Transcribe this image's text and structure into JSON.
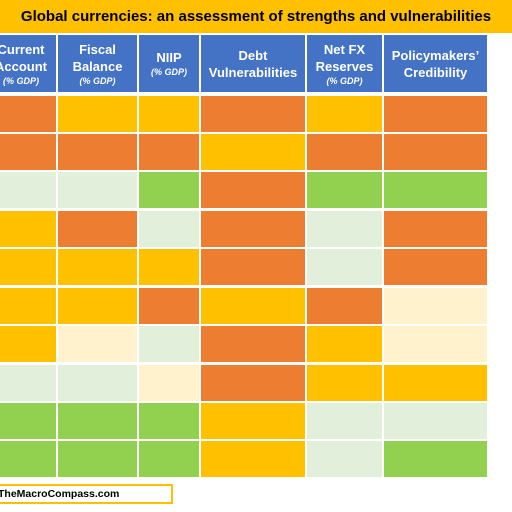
{
  "title": "Global currencies: an assessment of strengths and vulnerabilities",
  "source": "TheMacroCompass.com",
  "colors": {
    "orange": "#ed7d31",
    "yellow": "#ffc000",
    "green": "#92d050",
    "light_green": "#e2efda",
    "cream": "#fff2cc",
    "header": "#4472c4",
    "title_bg": "#ffc000"
  },
  "chart_data": {
    "type": "table",
    "title": "Global currencies: an assessment of strengths and vulnerabilities",
    "columns": [
      {
        "label": "Current\nAccount",
        "sub": "(% GDP)"
      },
      {
        "label": "Fiscal\nBalance",
        "sub": "(% GDP)"
      },
      {
        "label": "NIIP",
        "sub": "(% GDP)"
      },
      {
        "label": "Debt\nVulnerabilities",
        "sub": ""
      },
      {
        "label": "Net FX\nReserves",
        "sub": "(% GDP)"
      },
      {
        "label": "Policymakers’\nCredibility",
        "sub": ""
      }
    ],
    "rows": [
      [
        "orange",
        "yellow",
        "yellow",
        "orange",
        "yellow",
        "orange"
      ],
      [
        "orange",
        "orange",
        "orange",
        "yellow",
        "orange",
        "orange"
      ],
      [
        "light_green",
        "light_green",
        "green",
        "orange",
        "green",
        "green"
      ],
      [
        "yellow",
        "orange",
        "light_green",
        "orange",
        "light_green",
        "orange"
      ],
      [
        "yellow",
        "yellow",
        "yellow",
        "orange",
        "light_green",
        "orange"
      ],
      [
        "yellow",
        "yellow",
        "orange",
        "yellow",
        "orange",
        "cream"
      ],
      [
        "yellow",
        "cream",
        "light_green",
        "orange",
        "yellow",
        "cream"
      ],
      [
        "light_green",
        "light_green",
        "cream",
        "orange",
        "yellow",
        "yellow"
      ],
      [
        "green",
        "green",
        "green",
        "yellow",
        "light_green",
        "light_green"
      ],
      [
        "green",
        "green",
        "green",
        "yellow",
        "light_green",
        "green"
      ]
    ]
  }
}
